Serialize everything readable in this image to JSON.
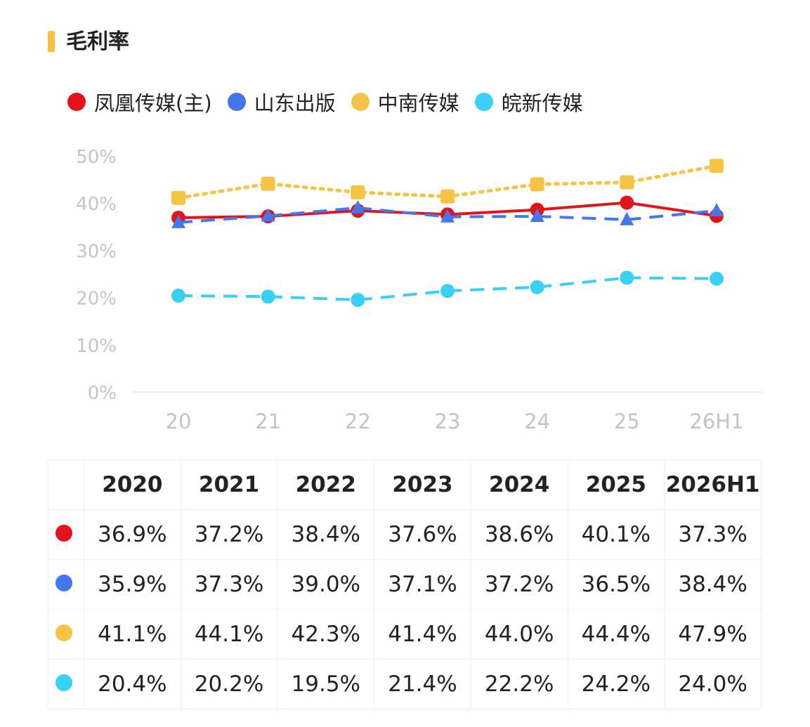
{
  "header": {
    "title": "毛利率"
  },
  "colors": {
    "accent": "#f6c044",
    "grid": "#ececec",
    "tick": "#c4c4c4"
  },
  "chart_data": {
    "type": "line",
    "title": "毛利率",
    "categories": [
      "20",
      "21",
      "22",
      "23",
      "24",
      "25",
      "26H1"
    ],
    "ylim": [
      0,
      50
    ],
    "yticks": [
      0,
      10,
      20,
      30,
      40,
      50
    ],
    "ytick_labels": [
      "0%",
      "10%",
      "20%",
      "30%",
      "40%",
      "50%"
    ],
    "grid": false,
    "legend_position": "top-left",
    "series": [
      {
        "name": "凤凰传媒(主)",
        "color": "#e3131b",
        "marker": "circle",
        "line": "solid",
        "values": [
          36.9,
          37.2,
          38.4,
          37.6,
          38.6,
          40.1,
          37.3
        ]
      },
      {
        "name": "山东出版",
        "color": "#4476ee",
        "marker": "triangle",
        "line": "dashed",
        "values": [
          35.9,
          37.3,
          39.0,
          37.1,
          37.2,
          36.5,
          38.4
        ]
      },
      {
        "name": "中南传媒",
        "color": "#f6c444",
        "marker": "square",
        "line": "dotted",
        "values": [
          41.1,
          44.1,
          42.3,
          41.4,
          44.0,
          44.4,
          47.9
        ]
      },
      {
        "name": "皖新传媒",
        "color": "#38d0f4",
        "marker": "circle",
        "line": "dashed",
        "values": [
          20.4,
          20.2,
          19.5,
          21.4,
          22.2,
          24.2,
          24.0
        ]
      }
    ]
  },
  "table": {
    "headers": [
      "2020",
      "2021",
      "2022",
      "2023",
      "2024",
      "2025",
      "2026H1"
    ],
    "rows": [
      {
        "color": "#e3131b",
        "cells": [
          "36.9%",
          "37.2%",
          "38.4%",
          "37.6%",
          "38.6%",
          "40.1%",
          "37.3%"
        ]
      },
      {
        "color": "#4476ee",
        "cells": [
          "35.9%",
          "37.3%",
          "39.0%",
          "37.1%",
          "37.2%",
          "36.5%",
          "38.4%"
        ]
      },
      {
        "color": "#f6c444",
        "cells": [
          "41.1%",
          "44.1%",
          "42.3%",
          "41.4%",
          "44.0%",
          "44.4%",
          "47.9%"
        ]
      },
      {
        "color": "#38d0f4",
        "cells": [
          "20.4%",
          "20.2%",
          "19.5%",
          "21.4%",
          "22.2%",
          "24.2%",
          "24.0%"
        ]
      }
    ]
  }
}
